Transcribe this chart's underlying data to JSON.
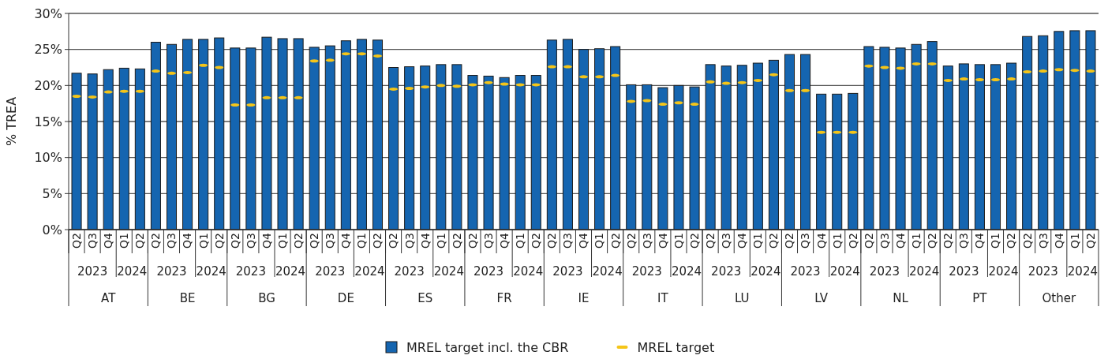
{
  "chart_data": {
    "type": "bar",
    "ylabel": "% TREA",
    "categories": [
      "Q2",
      "Q3",
      "Q4",
      "Q1",
      "Q2",
      "Q2",
      "Q3",
      "Q4",
      "Q1",
      "Q2",
      "Q2",
      "Q3",
      "Q4",
      "Q1",
      "Q2",
      "Q2",
      "Q3",
      "Q4",
      "Q1",
      "Q2",
      "Q2",
      "Q3",
      "Q4",
      "Q1",
      "Q2",
      "Q2",
      "Q3",
      "Q4",
      "Q1",
      "Q2",
      "Q2",
      "Q3",
      "Q4",
      "Q1",
      "Q2",
      "Q2",
      "Q3",
      "Q4",
      "Q1",
      "Q2",
      "Q2",
      "Q3",
      "Q4",
      "Q1",
      "Q2",
      "Q2",
      "Q3",
      "Q4",
      "Q1",
      "Q2",
      "Q2",
      "Q3",
      "Q4",
      "Q1",
      "Q2",
      "Q2",
      "Q3",
      "Q4",
      "Q1",
      "Q2",
      "Q2",
      "Q3",
      "Q4",
      "Q1",
      "Q2"
    ],
    "series": [
      {
        "name": "MREL target incl. the CBR",
        "color": "#1565b0",
        "values": [
          21.7,
          21.6,
          22.2,
          22.4,
          22.3,
          26.0,
          25.7,
          26.4,
          26.4,
          26.6,
          25.2,
          25.2,
          26.7,
          26.5,
          26.5,
          25.3,
          25.5,
          26.2,
          26.4,
          26.3,
          22.5,
          22.6,
          22.7,
          22.9,
          22.9,
          21.4,
          21.3,
          21.1,
          21.4,
          21.4,
          26.3,
          26.4,
          25.0,
          25.1,
          25.4,
          20.1,
          20.1,
          19.7,
          20.0,
          19.8,
          22.9,
          22.7,
          22.8,
          23.1,
          23.5,
          24.3,
          24.3,
          18.8,
          18.8,
          18.9,
          25.4,
          25.3,
          25.2,
          25.7,
          26.1,
          22.7,
          23.0,
          22.9,
          22.9,
          23.1,
          26.8,
          26.9,
          27.5,
          27.6,
          27.6
        ]
      },
      {
        "name": "MREL target",
        "type": "scatter",
        "color": "#f5c518",
        "values": [
          18.5,
          18.4,
          19.1,
          19.2,
          19.2,
          22.0,
          21.7,
          21.8,
          22.8,
          22.5,
          17.3,
          17.3,
          18.3,
          18.3,
          18.3,
          23.4,
          23.5,
          24.4,
          24.4,
          24.1,
          19.5,
          19.6,
          19.8,
          20.0,
          19.9,
          20.1,
          20.4,
          20.2,
          20.1,
          20.1,
          22.6,
          22.6,
          21.2,
          21.2,
          21.4,
          17.8,
          17.9,
          17.4,
          17.6,
          17.4,
          20.5,
          20.3,
          20.4,
          20.7,
          21.5,
          19.3,
          19.3,
          13.5,
          13.5,
          13.5,
          22.7,
          22.5,
          22.4,
          23.0,
          23.0,
          20.7,
          20.9,
          20.8,
          20.8,
          20.9,
          21.9,
          22.0,
          22.2,
          22.1,
          22.0
        ]
      }
    ],
    "annotations": [
      "2023",
      "2024",
      "AT",
      "2023",
      "2024",
      "BE",
      "2023",
      "2024",
      "BG",
      "2023",
      "2024",
      "DE",
      "2023",
      "2024",
      "ES",
      "2023",
      "2024",
      "FR",
      "2023",
      "2024",
      "IE",
      "2023",
      "2024",
      "IT",
      "2023",
      "2024",
      "LU",
      "2023",
      "2024",
      "LV",
      "2023",
      "2024",
      "NL",
      "2023",
      "2024",
      "PT",
      "2023",
      "2024",
      "Other"
    ],
    "ylim": [
      0,
      30
    ],
    "yticks": [
      {
        "value": 0,
        "label": "0%"
      },
      {
        "value": 5,
        "label": "5%"
      },
      {
        "value": 10,
        "label": "10%"
      },
      {
        "value": 15,
        "label": "15%"
      },
      {
        "value": 20,
        "label": "20%"
      },
      {
        "value": 25,
        "label": "25%"
      },
      {
        "value": 30,
        "label": "30%"
      }
    ],
    "grid": "y",
    "legend": "bottom"
  }
}
